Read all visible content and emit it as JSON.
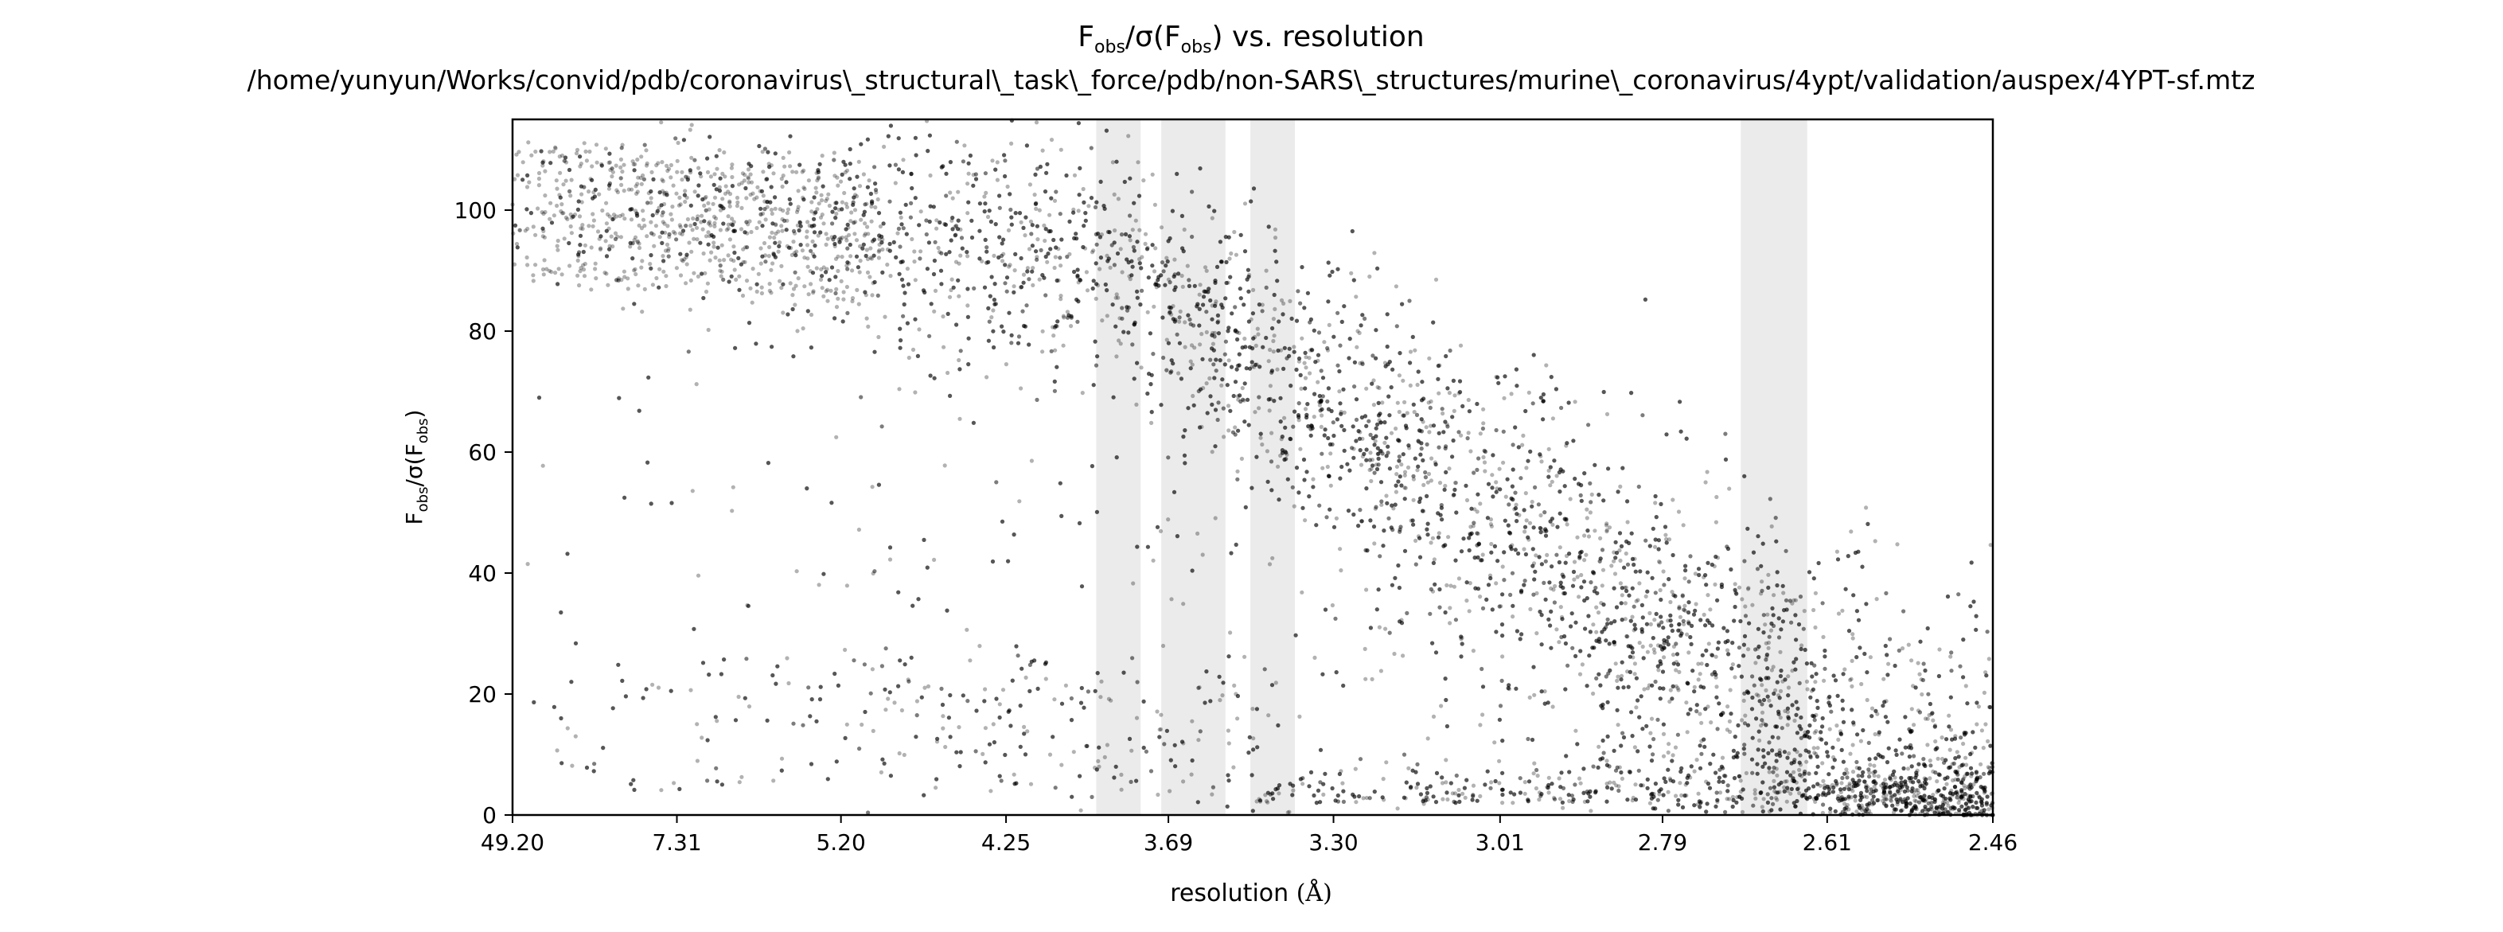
{
  "chart_data": {
    "type": "scatter",
    "title_main": "vs. resolution",
    "title_path": "/home/yunyun/Works/convid/pdb/coronavirus\\_structural\\_task\\_force/pdb/non-SARS\\_structures/murine\\_coronavirus/4ypt/validation/auspex/4YPT-sf.mtz",
    "ylabel_symbol": {
      "F": "F",
      "sub": "obs",
      "sigma": "σ"
    },
    "xlabel": "resolution (Å)",
    "xlabel_text": "resolution",
    "xlabel_unit": "(Å)",
    "x_scale": "1/d^2",
    "x_ticks": [
      "49.20",
      "7.31",
      "5.20",
      "4.25",
      "3.69",
      "3.30",
      "3.01",
      "2.79",
      "2.61",
      "2.46"
    ],
    "ylim": [
      0,
      115
    ],
    "y_ticks": [
      "0",
      "20",
      "40",
      "60",
      "80",
      "100"
    ],
    "point_color": "#000000",
    "point_alpha": 0.3,
    "ice_ring_color": "#ebebeb",
    "ice_rings": [
      {
        "from": 3.91,
        "to": 3.77
      },
      {
        "from": 3.71,
        "to": 3.54
      },
      {
        "from": 3.48,
        "to": 3.38
      },
      {
        "from": 2.7,
        "to": 2.63
      }
    ],
    "grid": false,
    "legend": "none",
    "data_summary": "Dense scatter of F_obs/σ(F_obs) per reflection versus resolution; values near 90–105 at low resolution, declining roughly linearly from ~3.7 Å to ~0–10 at 2.46 Å, with a dense band near 2–5 at high resolution."
  }
}
